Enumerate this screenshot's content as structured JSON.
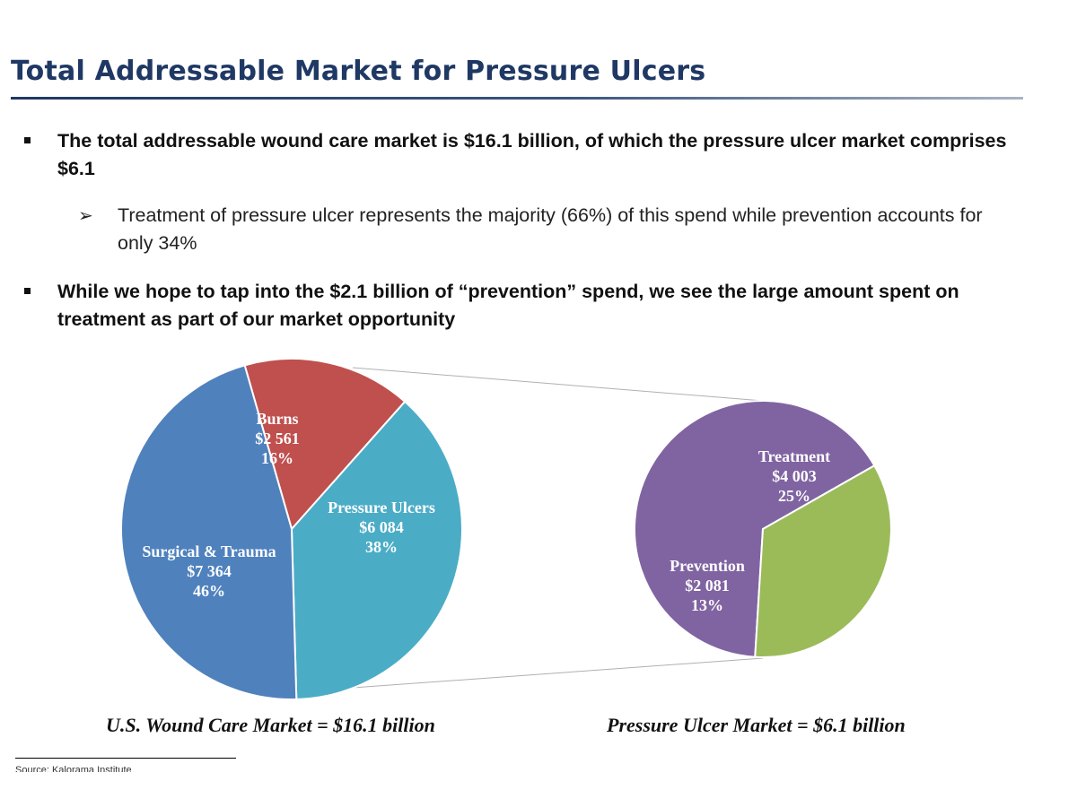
{
  "slide": {
    "title": "Total Addressable Market for Pressure Ulcers",
    "bullets": [
      "The total addressable wound care market is $16.1 billion, of which the pressure ulcer market comprises $6.1",
      "While we hope to tap into the $2.1 billion of “prevention” spend, we see the large amount spent on treatment as part of our market opportunity"
    ],
    "sub_bullet": "Treatment of pressure ulcer represents the majority (66%) of this spend while prevention accounts for only 34%",
    "source": "Source: Kalorama Institute"
  },
  "colors": {
    "title": "#1f3864",
    "burns": "#c0504d",
    "pressure_ulcers": "#4bacc6",
    "surgical_trauma": "#4f81bd",
    "treatment": "#8064a2",
    "prevention": "#9bbb59"
  },
  "chart_data": [
    {
      "type": "pie",
      "title": "U.S. Wound Care Market = $16.1 billion",
      "slices": [
        {
          "name": "Burns",
          "value_label": "$2 561",
          "value": 2561,
          "percent": 16,
          "percent_label": "16%",
          "color": "#c0504d"
        },
        {
          "name": "Pressure Ulcers",
          "value_label": "$6 084",
          "value": 6084,
          "percent": 38,
          "percent_label": "38%",
          "color": "#4bacc6"
        },
        {
          "name": "Surgical & Trauma",
          "value_label": "$7 364",
          "value": 7364,
          "percent": 46,
          "percent_label": "46%",
          "color": "#4f81bd"
        }
      ]
    },
    {
      "type": "pie",
      "title": "Pressure Ulcer Market = $6.1 billion",
      "slices": [
        {
          "name": "Treatment",
          "value_label": "$4 003",
          "value": 4003,
          "percent": 25,
          "percent_label": "25%",
          "color": "#8064a2"
        },
        {
          "name": "Prevention",
          "value_label": "$2 081",
          "value": 2081,
          "percent": 13,
          "percent_label": "13%",
          "color": "#9bbb59"
        }
      ]
    }
  ]
}
